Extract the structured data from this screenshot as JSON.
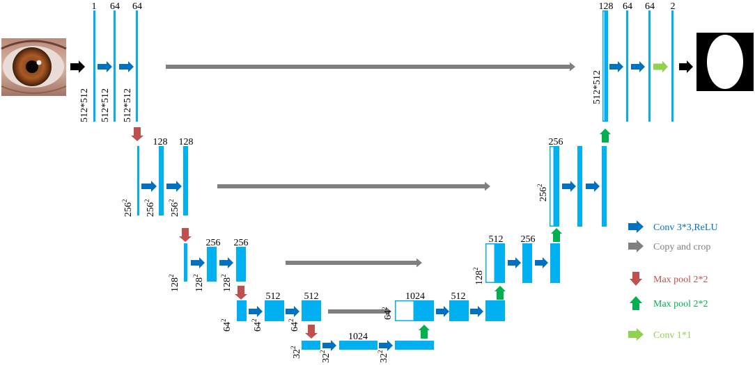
{
  "colors": {
    "fmap": "#00b0f0",
    "conv": "#0070c0",
    "copy": "#7f7f7f",
    "pool_down": "#c0504d",
    "pool_up": "#00b050",
    "conv1x1": "#92d050",
    "io_arrow": "#000000"
  },
  "top_labels": {
    "enc0_a": "1",
    "enc0_b": "64",
    "enc0_c": "64",
    "enc1_b": "128",
    "enc1_c": "128",
    "enc2_b": "256",
    "enc2_c": "256",
    "enc3_b": "512",
    "enc3_c": "512",
    "bottom": "1024",
    "dec3_a": "1024",
    "dec3_b": "512",
    "dec2_a": "512",
    "dec2_b": "256",
    "dec1_a": "256",
    "dec0_a": "128",
    "dec0_b": "64",
    "dec0_c": "64",
    "dec0_d": "2"
  },
  "side_labels": {
    "s512": "512*512",
    "s256": "256",
    "s128": "128",
    "s64": "64",
    "s32": "32",
    "sup": "2"
  },
  "legend": [
    {
      "icon": "conv-arrow-icon",
      "color_key": "conv",
      "text_color": "#0070c0",
      "label": "Conv 3*3,ReLU"
    },
    {
      "icon": "copy-arrow-icon",
      "color_key": "copy",
      "text_color": "#7f7f7f",
      "label": "Copy and crop"
    },
    {
      "icon": "pool-down-arrow-icon",
      "color_key": "pool_down",
      "text_color": "#c0504d",
      "label": "Max pool 2*2"
    },
    {
      "icon": "pool-up-arrow-icon",
      "color_key": "pool_up",
      "text_color": "#00b050",
      "label": "Max pool 2*2"
    },
    {
      "icon": "conv1x1-arrow-icon",
      "color_key": "conv1x1",
      "text_color": "#92d050",
      "label": "Conv 1*1"
    }
  ]
}
